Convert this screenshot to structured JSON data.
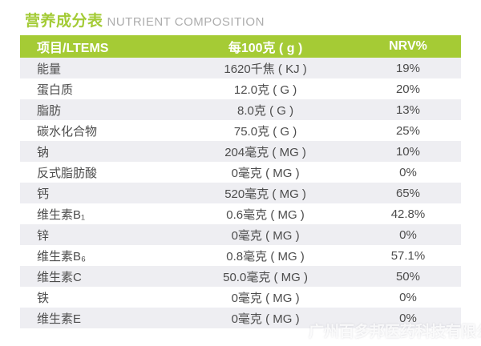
{
  "page": {
    "background": "#ffffff",
    "accent_green": "#a5cb35",
    "row_alt_color": "#eeeef2",
    "text_color": "#4c4c4c"
  },
  "title": {
    "cn": "营养成分表",
    "en": "NUTRIENT COMPOSITION"
  },
  "table": {
    "columns": {
      "item": "项目/LTEMS",
      "per100g": "每100克 ( g )",
      "nrv": "NRV%"
    },
    "rows": [
      {
        "item": "能量",
        "per100g": "1620千焦 ( KJ )",
        "nrv": "19%"
      },
      {
        "item": "蛋白质",
        "per100g": "12.0克 ( G )",
        "nrv": "20%"
      },
      {
        "item": "脂肪",
        "per100g": "8.0克 ( G )",
        "nrv": "13%"
      },
      {
        "item": "碳水化合物",
        "per100g": "75.0克 ( G )",
        "nrv": "25%"
      },
      {
        "item": "钠",
        "per100g": "204毫克 ( MG )",
        "nrv": "10%"
      },
      {
        "item": "反式脂肪酸",
        "per100g": "0毫克 ( MG )",
        "nrv": "0%"
      },
      {
        "item": "钙",
        "per100g": "520毫克 ( MG )",
        "nrv": "65%"
      },
      {
        "item": "维生素B₁",
        "per100g": "0.6毫克 ( MG )",
        "nrv": "42.8%"
      },
      {
        "item": "锌",
        "per100g": "0毫克 ( MG )",
        "nrv": "0%"
      },
      {
        "item": "维生素B₆",
        "per100g": "0.8毫克 ( MG )",
        "nrv": "57.1%"
      },
      {
        "item": "维生素C",
        "per100g": "50.0毫克 ( MG )",
        "nrv": "50%"
      },
      {
        "item": "铁",
        "per100g": "0毫克 ( MG )",
        "nrv": "0%"
      },
      {
        "item": "维生素E",
        "per100g": "0毫克 ( MG )",
        "nrv": "0%"
      }
    ]
  },
  "watermark": "广州百多邦医药科技有限公司"
}
